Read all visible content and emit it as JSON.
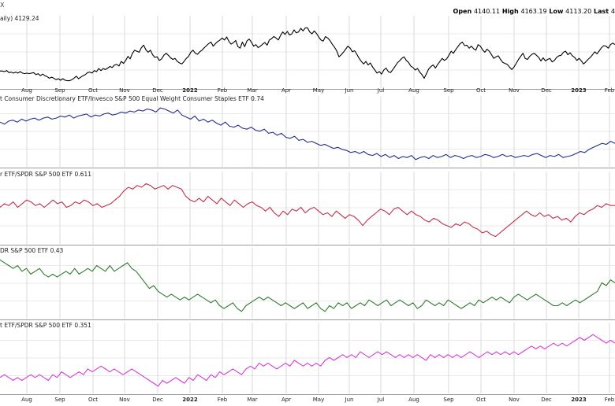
{
  "header": {
    "symbol": "X",
    "ohlc": [
      {
        "label": "Open",
        "value": "4140.11"
      },
      {
        "label": "High",
        "value": "4163.19"
      },
      {
        "label": "Low",
        "value": "4113.20"
      },
      {
        "label": "Last",
        "value": "4"
      }
    ]
  },
  "chart_data": [
    {
      "type": "line",
      "title": "aily) 4129.24",
      "color": "#000000",
      "x_ticks": [
        "Aug",
        "Sep",
        "Oct",
        "Nov",
        "Dec",
        "2022",
        "Feb",
        "Mar",
        "Apr",
        "May",
        "Jun",
        "Jul",
        "Aug",
        "Sep",
        "Oct",
        "Nov",
        "Dec",
        "2023",
        "Feb"
      ],
      "values": [
        47,
        47,
        46,
        48,
        44,
        45,
        43,
        45,
        43,
        46,
        43,
        42,
        43,
        42,
        43,
        44,
        40,
        42,
        38,
        41,
        38,
        36,
        33,
        35,
        33,
        30,
        32,
        29,
        32,
        29,
        28,
        28,
        30,
        33,
        37,
        32,
        35,
        38,
        40,
        44,
        45,
        43,
        48,
        46,
        52,
        48,
        52,
        50,
        53,
        56,
        54,
        59,
        60,
        57,
        66,
        62,
        68,
        76,
        71,
        82,
        88,
        86,
        84,
        93,
        98,
        89,
        84,
        88,
        79,
        74,
        75,
        68,
        71,
        78,
        82,
        78,
        73,
        70,
        72,
        66,
        63,
        61,
        66,
        72,
        76,
        84,
        88,
        82,
        80,
        85,
        88,
        93,
        97,
        101,
        104,
        96,
        101,
        105,
        108,
        112,
        108,
        114,
        105,
        100,
        103,
        107,
        95,
        92,
        104,
        95,
        106,
        110,
        104,
        96,
        99,
        93,
        96,
        100,
        103,
        98,
        108,
        111,
        115,
        112,
        108,
        117,
        124,
        119,
        125,
        118,
        120,
        128,
        122,
        124,
        131,
        126,
        132,
        132,
        124,
        120,
        126,
        121,
        114,
        108,
        106,
        115,
        112,
        107,
        100,
        94,
        87,
        75,
        79,
        84,
        90,
        96,
        92,
        85,
        87,
        80,
        72,
        66,
        61,
        66,
        59,
        63,
        55,
        49,
        43,
        46,
        41,
        49,
        53,
        46,
        44,
        50,
        56,
        63,
        67,
        72,
        75,
        68,
        64,
        57,
        54,
        49,
        52,
        45,
        40,
        33,
        42,
        51,
        56,
        59,
        53,
        60,
        66,
        72,
        68,
        71,
        78,
        86,
        82,
        89,
        95,
        101,
        104,
        97,
        98,
        92,
        96,
        91,
        88,
        99,
        96,
        89,
        84,
        90,
        86,
        79,
        72,
        75,
        77,
        70,
        64,
        62,
        60,
        55,
        50,
        55,
        62,
        70,
        76,
        82,
        72,
        70,
        76,
        80,
        82,
        78,
        74,
        67,
        73,
        67,
        70,
        72,
        65,
        68,
        74,
        77,
        78,
        84,
        86,
        79,
        83,
        77,
        74,
        68,
        72,
        67,
        61,
        65,
        70,
        74,
        79,
        85,
        81,
        87,
        93,
        97,
        96,
        92,
        99,
        102,
        99
      ]
    },
    {
      "type": "line",
      "title": "t Consumer Discretionary ETF/Invesco S&P 500 Equal Weight Consumer Staples ETF 0.74",
      "color": "#1f2e8c",
      "x_ticks": [],
      "values": [
        0.95,
        0.93,
        0.96,
        0.97,
        0.95,
        0.98,
        0.96,
        0.98,
        0.99,
        0.97,
        0.99,
        1.0,
        0.98,
        0.99,
        1.01,
        1.0,
        1.02,
        0.99,
        1.01,
        1.02,
        1.03,
        1.0,
        1.02,
        1.01,
        1.03,
        1.04,
        1.02,
        1.03,
        1.05,
        1.04,
        1.06,
        1.05,
        1.07,
        1.06,
        1.08,
        1.07,
        1.05,
        1.09,
        1.08,
        1.06,
        1.04,
        1.07,
        1.02,
        1.0,
        0.98,
        1.01,
        0.96,
        0.98,
        0.95,
        0.97,
        0.94,
        0.92,
        0.95,
        0.91,
        0.9,
        0.92,
        0.89,
        0.88,
        0.9,
        0.87,
        0.86,
        0.88,
        0.84,
        0.85,
        0.82,
        0.84,
        0.8,
        0.79,
        0.81,
        0.77,
        0.78,
        0.75,
        0.76,
        0.74,
        0.72,
        0.73,
        0.71,
        0.69,
        0.7,
        0.68,
        0.67,
        0.65,
        0.66,
        0.64,
        0.66,
        0.63,
        0.62,
        0.64,
        0.61,
        0.63,
        0.6,
        0.62,
        0.59,
        0.61,
        0.6,
        0.62,
        0.58,
        0.6,
        0.61,
        0.59,
        0.62,
        0.6,
        0.61,
        0.63,
        0.6,
        0.62,
        0.61,
        0.59,
        0.61,
        0.62,
        0.6,
        0.61,
        0.63,
        0.62,
        0.6,
        0.61,
        0.63,
        0.61,
        0.62,
        0.6,
        0.61,
        0.62,
        0.61,
        0.63,
        0.64,
        0.62,
        0.6,
        0.62,
        0.61,
        0.63,
        0.6,
        0.61,
        0.62,
        0.64,
        0.66,
        0.65,
        0.68,
        0.7,
        0.72,
        0.74,
        0.73,
        0.76,
        0.74
      ]
    },
    {
      "type": "line",
      "title": "r ETF/SPDR S&P 500 ETF 0.611",
      "color": "#c0304a",
      "x_ticks": [],
      "values": [
        0.6,
        0.62,
        0.61,
        0.63,
        0.6,
        0.62,
        0.64,
        0.63,
        0.61,
        0.62,
        0.6,
        0.62,
        0.64,
        0.62,
        0.63,
        0.6,
        0.61,
        0.63,
        0.62,
        0.64,
        0.63,
        0.61,
        0.62,
        0.6,
        0.61,
        0.62,
        0.64,
        0.66,
        0.69,
        0.71,
        0.7,
        0.72,
        0.71,
        0.73,
        0.72,
        0.7,
        0.71,
        0.72,
        0.7,
        0.72,
        0.71,
        0.7,
        0.66,
        0.64,
        0.63,
        0.65,
        0.63,
        0.66,
        0.64,
        0.62,
        0.65,
        0.63,
        0.61,
        0.64,
        0.62,
        0.6,
        0.62,
        0.63,
        0.61,
        0.6,
        0.58,
        0.6,
        0.57,
        0.55,
        0.58,
        0.56,
        0.59,
        0.58,
        0.6,
        0.57,
        0.59,
        0.6,
        0.58,
        0.56,
        0.57,
        0.55,
        0.58,
        0.56,
        0.54,
        0.56,
        0.55,
        0.53,
        0.5,
        0.53,
        0.55,
        0.57,
        0.59,
        0.58,
        0.56,
        0.59,
        0.6,
        0.58,
        0.56,
        0.58,
        0.56,
        0.55,
        0.53,
        0.52,
        0.54,
        0.53,
        0.51,
        0.5,
        0.49,
        0.51,
        0.5,
        0.52,
        0.51,
        0.49,
        0.48,
        0.46,
        0.47,
        0.45,
        0.44,
        0.46,
        0.48,
        0.5,
        0.52,
        0.54,
        0.56,
        0.58,
        0.56,
        0.55,
        0.57,
        0.55,
        0.56,
        0.54,
        0.55,
        0.53,
        0.54,
        0.52,
        0.55,
        0.57,
        0.56,
        0.58,
        0.59,
        0.61,
        0.6,
        0.62,
        0.61,
        0.61
      ]
    },
    {
      "type": "line",
      "title": "DR S&P 500 ETF 0.43",
      "color": "#2e7a2e",
      "x_ticks": [],
      "values": [
        0.5,
        0.49,
        0.48,
        0.47,
        0.48,
        0.46,
        0.47,
        0.45,
        0.46,
        0.47,
        0.45,
        0.44,
        0.45,
        0.44,
        0.45,
        0.46,
        0.45,
        0.47,
        0.45,
        0.46,
        0.47,
        0.46,
        0.48,
        0.47,
        0.46,
        0.48,
        0.46,
        0.47,
        0.48,
        0.49,
        0.47,
        0.46,
        0.44,
        0.42,
        0.4,
        0.41,
        0.39,
        0.38,
        0.37,
        0.38,
        0.37,
        0.36,
        0.37,
        0.36,
        0.37,
        0.38,
        0.37,
        0.36,
        0.35,
        0.36,
        0.34,
        0.33,
        0.34,
        0.35,
        0.33,
        0.32,
        0.34,
        0.35,
        0.36,
        0.37,
        0.36,
        0.37,
        0.36,
        0.35,
        0.34,
        0.35,
        0.34,
        0.33,
        0.34,
        0.35,
        0.33,
        0.34,
        0.35,
        0.33,
        0.32,
        0.34,
        0.33,
        0.35,
        0.34,
        0.35,
        0.33,
        0.34,
        0.35,
        0.34,
        0.36,
        0.35,
        0.34,
        0.35,
        0.36,
        0.34,
        0.35,
        0.36,
        0.35,
        0.34,
        0.35,
        0.33,
        0.34,
        0.36,
        0.35,
        0.34,
        0.35,
        0.34,
        0.36,
        0.35,
        0.34,
        0.33,
        0.34,
        0.35,
        0.34,
        0.36,
        0.35,
        0.36,
        0.37,
        0.36,
        0.37,
        0.36,
        0.35,
        0.37,
        0.38,
        0.37,
        0.36,
        0.37,
        0.38,
        0.37,
        0.36,
        0.35,
        0.34,
        0.34,
        0.35,
        0.34,
        0.35,
        0.36,
        0.35,
        0.36,
        0.37,
        0.38,
        0.39,
        0.42,
        0.41,
        0.43,
        0.42
      ]
    },
    {
      "type": "line",
      "title": "t ETF/SPDR S&P 500 ETF 0.351",
      "color": "#d63ad6",
      "x_ticks": [
        "Aug",
        "Sep",
        "Oct",
        "Nov",
        "Dec",
        "2022",
        "Feb",
        "Mar",
        "Apr",
        "May",
        "Jun",
        "Jul",
        "Aug",
        "Sep",
        "Oct",
        "Nov",
        "Dec",
        "2023",
        "Feb"
      ],
      "values": [
        0.23,
        0.24,
        0.23,
        0.22,
        0.23,
        0.22,
        0.23,
        0.24,
        0.23,
        0.24,
        0.23,
        0.22,
        0.24,
        0.23,
        0.25,
        0.24,
        0.23,
        0.24,
        0.25,
        0.24,
        0.26,
        0.25,
        0.26,
        0.27,
        0.26,
        0.25,
        0.26,
        0.25,
        0.24,
        0.25,
        0.26,
        0.25,
        0.24,
        0.23,
        0.22,
        0.21,
        0.2,
        0.22,
        0.21,
        0.22,
        0.23,
        0.22,
        0.21,
        0.23,
        0.22,
        0.24,
        0.23,
        0.22,
        0.24,
        0.23,
        0.25,
        0.24,
        0.25,
        0.26,
        0.25,
        0.24,
        0.26,
        0.27,
        0.26,
        0.28,
        0.27,
        0.28,
        0.27,
        0.26,
        0.27,
        0.28,
        0.27,
        0.29,
        0.28,
        0.27,
        0.28,
        0.27,
        0.28,
        0.27,
        0.29,
        0.3,
        0.29,
        0.3,
        0.31,
        0.3,
        0.31,
        0.3,
        0.32,
        0.31,
        0.3,
        0.31,
        0.32,
        0.31,
        0.32,
        0.31,
        0.3,
        0.31,
        0.3,
        0.31,
        0.3,
        0.31,
        0.3,
        0.29,
        0.31,
        0.3,
        0.31,
        0.3,
        0.31,
        0.3,
        0.31,
        0.3,
        0.31,
        0.32,
        0.31,
        0.3,
        0.31,
        0.32,
        0.31,
        0.32,
        0.31,
        0.32,
        0.31,
        0.32,
        0.31,
        0.32,
        0.33,
        0.34,
        0.33,
        0.34,
        0.33,
        0.34,
        0.35,
        0.34,
        0.35,
        0.34,
        0.35,
        0.36,
        0.37,
        0.36,
        0.37,
        0.38,
        0.37,
        0.36,
        0.35,
        0.36,
        0.35
      ]
    }
  ]
}
